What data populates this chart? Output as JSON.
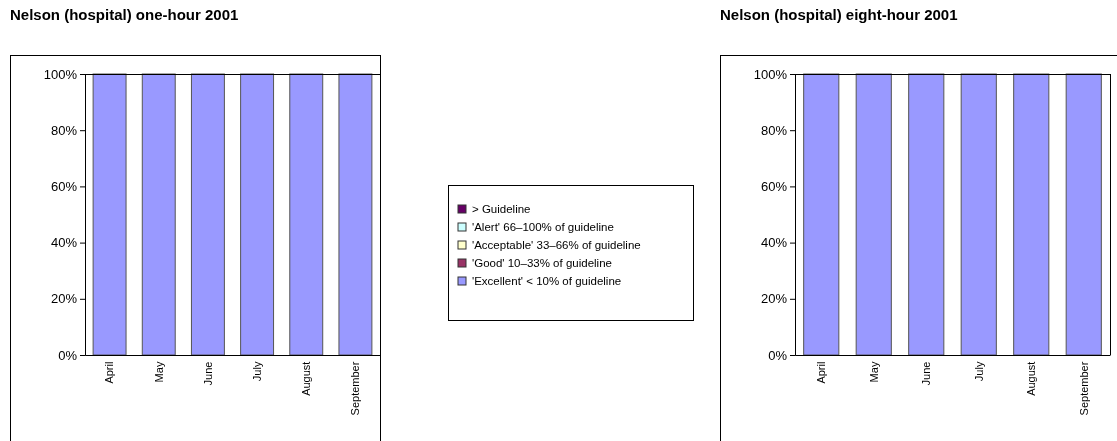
{
  "chart_data": [
    {
      "type": "bar",
      "title": "Nelson (hospital) one-hour 2001",
      "categories": [
        "April",
        "May",
        "June",
        "July",
        "August",
        "September"
      ],
      "stacked": true,
      "ylim": [
        0,
        100
      ],
      "yticks": [
        {
          "value": 0,
          "label": "0%"
        },
        {
          "value": 20,
          "label": "20%"
        },
        {
          "value": 40,
          "label": "40%"
        },
        {
          "value": 60,
          "label": "60%"
        },
        {
          "value": 80,
          "label": "80%"
        },
        {
          "value": 100,
          "label": "100%"
        }
      ],
      "grid": false,
      "legend": "right",
      "series": [
        {
          "name": "'Excellent' < 10% of guideline",
          "color": "#9999ff",
          "values": [
            100,
            100,
            100,
            100,
            100,
            100
          ]
        },
        {
          "name": "'Good' 10–33% of guideline",
          "color": "#993366",
          "values": [
            0,
            0,
            0,
            0,
            0,
            0
          ]
        },
        {
          "name": "'Acceptable' 33–66% of guideline",
          "color": "#ffffcc",
          "values": [
            0,
            0,
            0,
            0,
            0,
            0
          ]
        },
        {
          "name": "'Alert' 66–100% of guideline",
          "color": "#ccffff",
          "values": [
            0,
            0,
            0,
            0,
            0,
            0
          ]
        },
        {
          "name": "> Guideline",
          "color": "#660066",
          "values": [
            0,
            0,
            0,
            0,
            0,
            0
          ]
        }
      ]
    },
    {
      "type": "bar",
      "title": "Nelson (hospital) eight-hour 2001",
      "categories": [
        "April",
        "May",
        "June",
        "July",
        "August",
        "September"
      ],
      "stacked": true,
      "ylim": [
        0,
        100
      ],
      "yticks": [
        {
          "value": 0,
          "label": "0%"
        },
        {
          "value": 20,
          "label": "20%"
        },
        {
          "value": 40,
          "label": "40%"
        },
        {
          "value": 60,
          "label": "60%"
        },
        {
          "value": 80,
          "label": "80%"
        },
        {
          "value": 100,
          "label": "100%"
        }
      ],
      "grid": false,
      "legend": false,
      "series": [
        {
          "color": "#9999ff",
          "values": [
            100,
            100,
            100,
            100,
            100,
            100
          ]
        },
        {
          "color": "#993366",
          "values": [
            0,
            0,
            0,
            0,
            0,
            0
          ]
        },
        {
          "color": "#ffffcc",
          "values": [
            0,
            0,
            0,
            0,
            0,
            0
          ]
        },
        {
          "color": "#ccffff",
          "values": [
            0,
            0,
            0,
            0,
            0,
            0
          ]
        },
        {
          "color": "#660066",
          "values": [
            0,
            0,
            0,
            0,
            0,
            0
          ]
        }
      ]
    }
  ]
}
